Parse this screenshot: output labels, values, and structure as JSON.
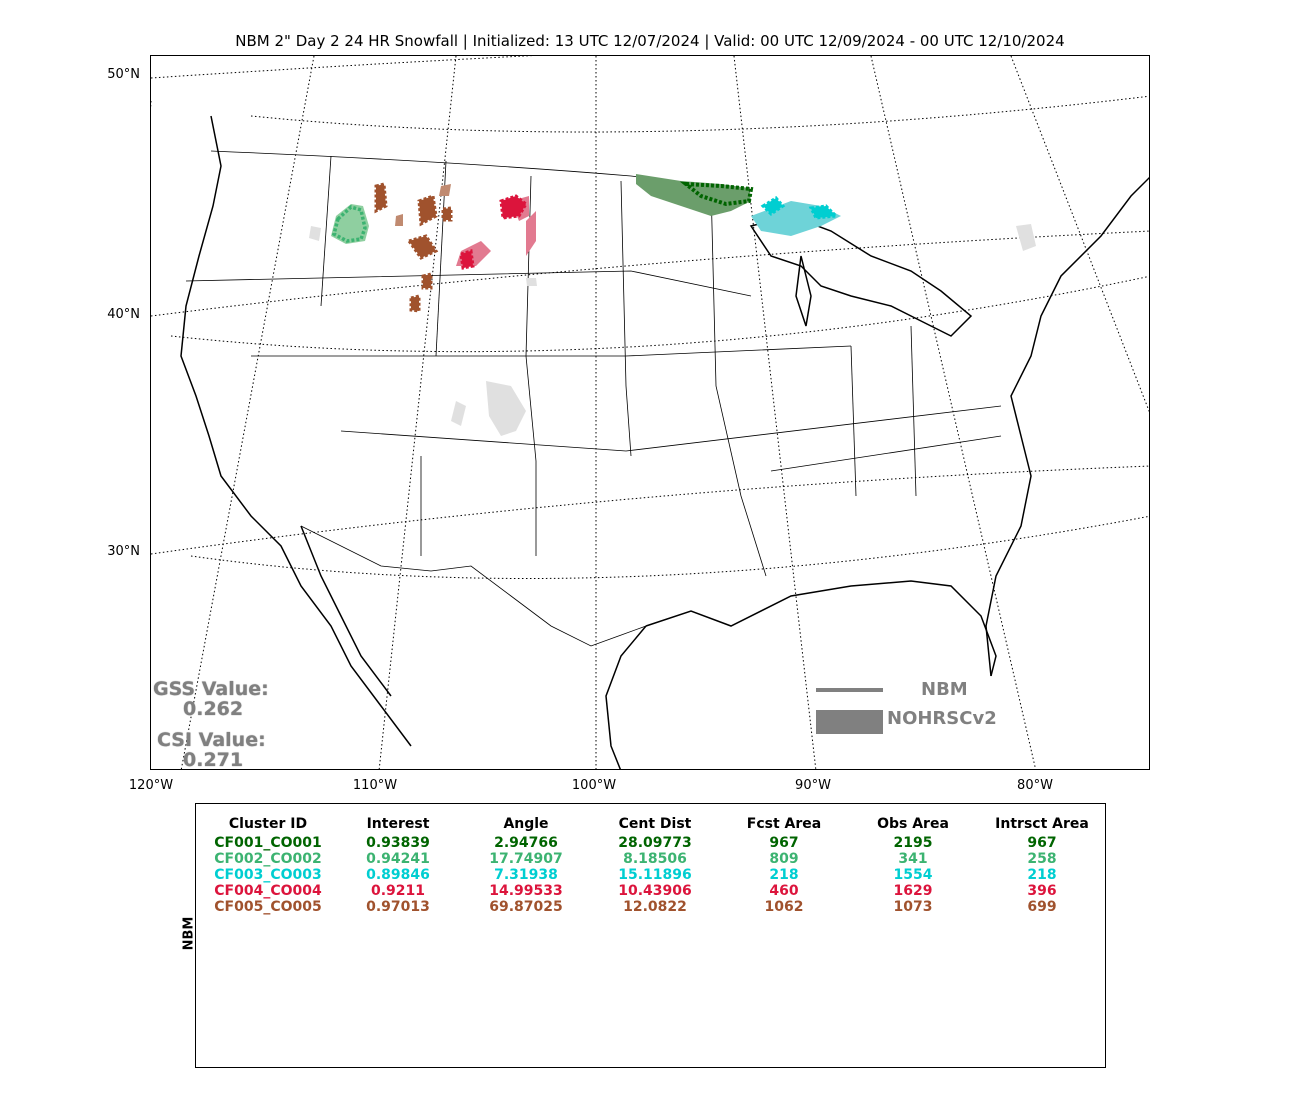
{
  "title": "NBM 2\" Day 2 24 HR Snowfall | Initialized: 13 UTC 12/07/2024 | Valid: 00 UTC 12/09/2024 - 00 UTC 12/10/2024",
  "axes": {
    "lat_labels": [
      "50°N",
      "40°N",
      "30°N"
    ],
    "lon_labels": [
      "120°W",
      "110°W",
      "100°W",
      "90°W",
      "80°W"
    ]
  },
  "stats": {
    "gss_label": "GSS Value:",
    "gss_value": "0.262",
    "csi_label": "CSI Value:",
    "csi_value": "0.271"
  },
  "legend": {
    "line_label": "NBM",
    "patch_label": "NOHRSCv2",
    "color": "#808080"
  },
  "table": {
    "side_label": "NBM",
    "headers": [
      "Cluster ID",
      "Interest",
      "Angle",
      "Cent Dist",
      "Fcst Area",
      "Obs Area",
      "Intrsct Area"
    ],
    "rows": [
      {
        "color": "#006400",
        "cells": [
          "CF001_CO001",
          "0.93839",
          "2.94766",
          "28.09773",
          "967",
          "2195",
          "967"
        ]
      },
      {
        "color": "#3CB371",
        "cells": [
          "CF002_CO002",
          "0.94241",
          "17.74907",
          "8.18506",
          "809",
          "341",
          "258"
        ]
      },
      {
        "color": "#00CED1",
        "cells": [
          "CF003_CO003",
          "0.89846",
          "7.31938",
          "15.11896",
          "218",
          "1554",
          "218"
        ]
      },
      {
        "color": "#DC143C",
        "cells": [
          "CF004_CO004",
          "0.9211",
          "14.99533",
          "10.43906",
          "460",
          "1629",
          "396"
        ]
      },
      {
        "color": "#A0522D",
        "cells": [
          "CF005_CO005",
          "0.97013",
          "69.87025",
          "12.0822",
          "1062",
          "1073",
          "699"
        ]
      }
    ]
  },
  "clusters": [
    {
      "name": "cluster-1-green",
      "fill": "#6B9E6B",
      "edge": "#006400"
    },
    {
      "name": "cluster-2-seagreen",
      "fill": "#8FCFA0",
      "edge": "#3CB371"
    },
    {
      "name": "cluster-3-cyan",
      "fill": "#6ED3D8",
      "edge": "#00CED1"
    },
    {
      "name": "cluster-4-crimson",
      "fill": "#E27A90",
      "edge": "#DC143C"
    },
    {
      "name": "cluster-5-sienna",
      "fill": "#C08A70",
      "edge": "#A0522D"
    }
  ]
}
